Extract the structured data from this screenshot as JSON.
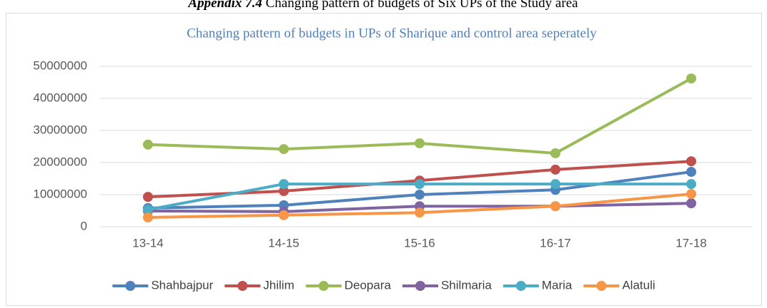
{
  "caption": {
    "label": "Appendix 7.4",
    "text": "Changing pattern of budgets of Six UPs of the Study area"
  },
  "chart_data": {
    "type": "line",
    "title": "Changing pattern of budgets in UPs of Sharique and control area seperately",
    "categories": [
      "13-14",
      "14-15",
      "15-16",
      "16-17",
      "17-18"
    ],
    "series": [
      {
        "name": "Shahbajpur",
        "color": "#4f81bd",
        "values": [
          5800000,
          6700000,
          10000000,
          11500000,
          17100000
        ]
      },
      {
        "name": "Jhilim",
        "color": "#c0504d",
        "values": [
          9300000,
          11100000,
          14400000,
          17800000,
          20400000
        ]
      },
      {
        "name": "Deopara",
        "color": "#9bbb59",
        "values": [
          25600000,
          24200000,
          26000000,
          22900000,
          46200000
        ]
      },
      {
        "name": "Shilmaria",
        "color": "#8064a2",
        "values": [
          4900000,
          4700000,
          6400000,
          6400000,
          7300000
        ]
      },
      {
        "name": "Maria",
        "color": "#4bacc6",
        "values": [
          5300000,
          13300000,
          13300000,
          13300000,
          13300000
        ]
      },
      {
        "name": "Alatuli",
        "color": "#f79646",
        "values": [
          2900000,
          3600000,
          4400000,
          6400000,
          10200000
        ]
      }
    ],
    "ylim": [
      0,
      50000000
    ],
    "yticks": [
      0,
      10000000,
      20000000,
      30000000,
      40000000,
      50000000
    ],
    "grid": true,
    "legend": "bottom"
  }
}
